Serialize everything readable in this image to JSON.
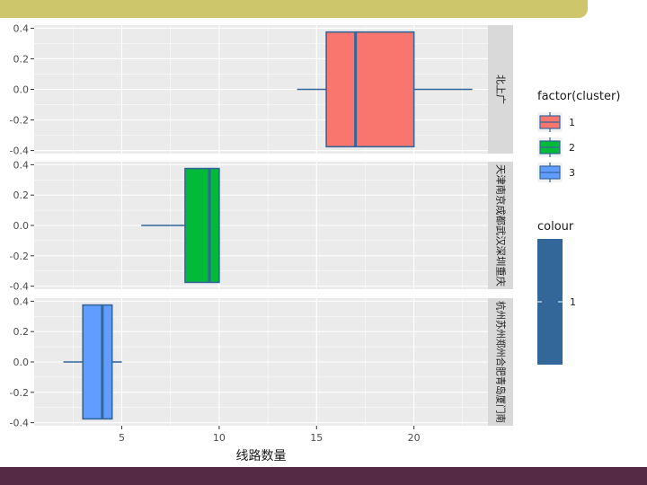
{
  "chart_data": {
    "type": "boxplot",
    "xlabel": "线路数量",
    "xlim": [
      0.5,
      23.8
    ],
    "x_ticks": [
      5,
      10,
      15,
      20
    ],
    "ylim": [
      -0.42,
      0.42
    ],
    "y_ticks": [
      "0.4",
      "0.2",
      "0.0",
      "-0.2",
      "-0.4"
    ],
    "y_tick_values": [
      0.4,
      0.2,
      0.0,
      -0.2,
      -0.4
    ],
    "box_half_height": 0.375,
    "grid": true,
    "facets": [
      {
        "strip": "北上广",
        "cluster": "1",
        "min": 14,
        "q1": 15.5,
        "median": 17,
        "q3": 20,
        "max": 23
      },
      {
        "strip": "天津南京成都武汉深圳重庆",
        "cluster": "2",
        "min": 6,
        "q1": 8.25,
        "median": 9.5,
        "q3": 10,
        "max": 10
      },
      {
        "strip": "杭州苏州郑州合肥青岛厦门南",
        "cluster": "3",
        "min": 2,
        "q1": 3,
        "median": 4,
        "q3": 4.5,
        "max": 5
      }
    ],
    "legend": {
      "position": "right",
      "fill": {
        "title": "factor(cluster)",
        "items": [
          {
            "label": "1",
            "color": "#F8766D"
          },
          {
            "label": "2",
            "color": "#00BA38"
          },
          {
            "label": "3",
            "color": "#619CFF"
          }
        ]
      },
      "colour": {
        "title": "colour",
        "items": [
          {
            "label": "1",
            "color": "#336699"
          }
        ]
      }
    },
    "colors": {
      "panel_bg": "#ebebeb",
      "grid": "#ffffff",
      "strip_bg": "#d9d9d9",
      "outline": "#336699"
    }
  }
}
